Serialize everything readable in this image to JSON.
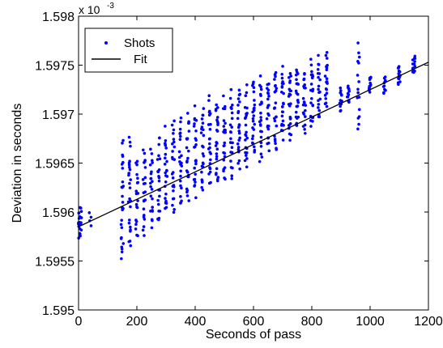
{
  "chart_data": {
    "type": "scatter",
    "xlabel": "Seconds of pass",
    "ylabel": "Deviation in seconds",
    "xlim": [
      0,
      1200
    ],
    "ylim": [
      1.595,
      1.598
    ],
    "y_multiplier_label": "x 10",
    "y_multiplier_exponent": "-3",
    "x_ticks": [
      "0",
      "200",
      "400",
      "600",
      "800",
      "1000",
      "1200"
    ],
    "x_tick_values": [
      0,
      200,
      400,
      600,
      800,
      1000,
      1200
    ],
    "y_ticks": [
      "1.595",
      "1.5955",
      "1.596",
      "1.5965",
      "1.597",
      "1.5975",
      "1.598"
    ],
    "y_tick_values": [
      1.595,
      1.5955,
      1.596,
      1.5965,
      1.597,
      1.5975,
      1.598
    ],
    "grid": false,
    "legend_position": "top-left",
    "series": [
      {
        "name": "Shots",
        "color": "#0000ff",
        "marker": "dot",
        "clusters": [
          {
            "x": 2,
            "min": 1.5957,
            "max": 1.59605,
            "n": 14
          },
          {
            "x": 10,
            "min": 1.5958,
            "max": 1.59605,
            "n": 6
          },
          {
            "x": 40,
            "min": 1.59585,
            "max": 1.596,
            "n": 4
          },
          {
            "x": 150,
            "min": 1.5954,
            "max": 1.5968,
            "n": 26
          },
          {
            "x": 175,
            "min": 1.5956,
            "max": 1.5968,
            "n": 26
          },
          {
            "x": 200,
            "min": 1.5957,
            "max": 1.5966,
            "n": 20
          },
          {
            "x": 225,
            "min": 1.5957,
            "max": 1.5967,
            "n": 22
          },
          {
            "x": 250,
            "min": 1.5958,
            "max": 1.5967,
            "n": 22
          },
          {
            "x": 275,
            "min": 1.5958,
            "max": 1.5968,
            "n": 22
          },
          {
            "x": 300,
            "min": 1.5959,
            "max": 1.5969,
            "n": 24
          },
          {
            "x": 325,
            "min": 1.59595,
            "max": 1.597,
            "n": 24
          },
          {
            "x": 350,
            "min": 1.596,
            "max": 1.597,
            "n": 24
          },
          {
            "x": 375,
            "min": 1.596,
            "max": 1.5971,
            "n": 24
          },
          {
            "x": 400,
            "min": 1.5961,
            "max": 1.5971,
            "n": 24
          },
          {
            "x": 425,
            "min": 1.59615,
            "max": 1.5971,
            "n": 24
          },
          {
            "x": 450,
            "min": 1.5962,
            "max": 1.5972,
            "n": 24
          },
          {
            "x": 475,
            "min": 1.5962,
            "max": 1.5972,
            "n": 24
          },
          {
            "x": 500,
            "min": 1.5963,
            "max": 1.5972,
            "n": 24
          },
          {
            "x": 525,
            "min": 1.5963,
            "max": 1.5973,
            "n": 24
          },
          {
            "x": 550,
            "min": 1.5964,
            "max": 1.5973,
            "n": 24
          },
          {
            "x": 575,
            "min": 1.5964,
            "max": 1.5973,
            "n": 24
          },
          {
            "x": 600,
            "min": 1.5965,
            "max": 1.5974,
            "n": 24
          },
          {
            "x": 625,
            "min": 1.5965,
            "max": 1.5974,
            "n": 24
          },
          {
            "x": 650,
            "min": 1.5966,
            "max": 1.5974,
            "n": 24
          },
          {
            "x": 675,
            "min": 1.5966,
            "max": 1.5975,
            "n": 24
          },
          {
            "x": 700,
            "min": 1.5967,
            "max": 1.5975,
            "n": 24
          },
          {
            "x": 725,
            "min": 1.5967,
            "max": 1.5975,
            "n": 24
          },
          {
            "x": 750,
            "min": 1.5968,
            "max": 1.5975,
            "n": 24
          },
          {
            "x": 775,
            "min": 1.5968,
            "max": 1.5975,
            "n": 22
          },
          {
            "x": 800,
            "min": 1.5968,
            "max": 1.5976,
            "n": 22
          },
          {
            "x": 825,
            "min": 1.5969,
            "max": 1.5976,
            "n": 20
          },
          {
            "x": 850,
            "min": 1.597,
            "max": 1.59765,
            "n": 20
          },
          {
            "x": 900,
            "min": 1.597,
            "max": 1.5973,
            "n": 14
          },
          {
            "x": 925,
            "min": 1.5971,
            "max": 1.5973,
            "n": 12
          },
          {
            "x": 960,
            "min": 1.59675,
            "max": 1.5978,
            "n": 16
          },
          {
            "x": 1000,
            "min": 1.5972,
            "max": 1.5974,
            "n": 12
          },
          {
            "x": 1050,
            "min": 1.5972,
            "max": 1.5974,
            "n": 12
          },
          {
            "x": 1100,
            "min": 1.5973,
            "max": 1.5975,
            "n": 14
          },
          {
            "x": 1150,
            "min": 1.5974,
            "max": 1.5976,
            "n": 14
          }
        ]
      },
      {
        "name": "Fit",
        "color": "#000000",
        "type": "line",
        "x": [
          0,
          1200
        ],
        "y": [
          1.59585,
          1.59753
        ]
      }
    ]
  }
}
